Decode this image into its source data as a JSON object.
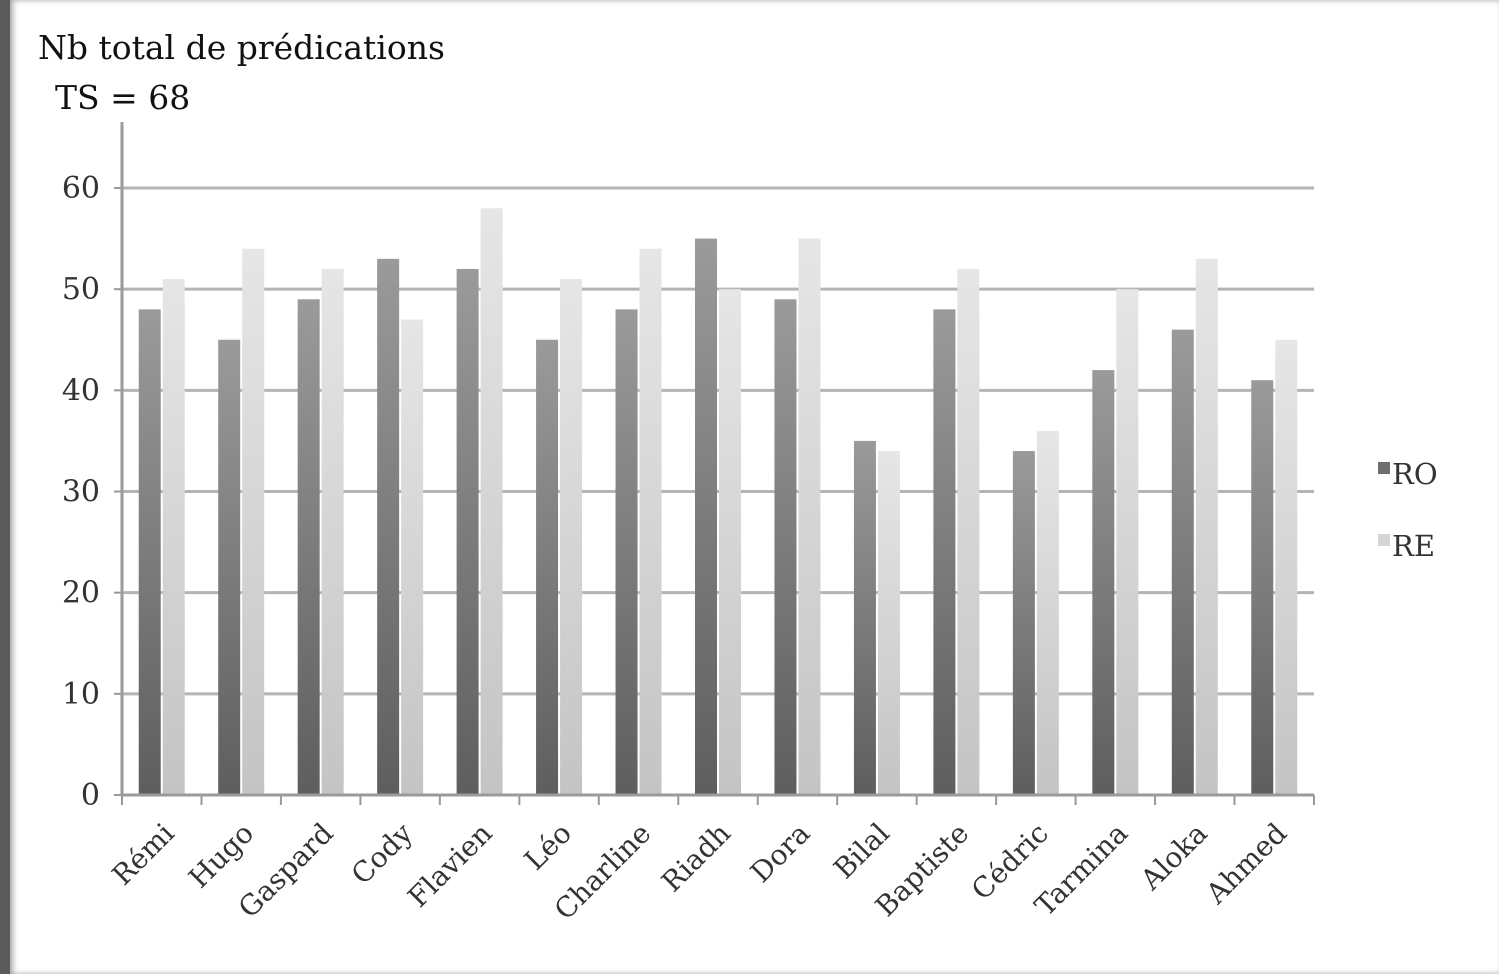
{
  "chart_data": {
    "type": "bar",
    "title": "Nb total de prédications",
    "subtitle": "TS = 68",
    "categories": [
      "Rémi",
      "Hugo",
      "Gaspard",
      "Cody",
      "Flavien",
      "Léo",
      "Charline",
      "Riadh",
      "Dora",
      "Bilal",
      "Baptiste",
      "Cédric",
      "Tarmina",
      "Aloka",
      "Ahmed"
    ],
    "series": [
      {
        "name": "RO",
        "values": [
          48,
          45,
          49,
          53,
          52,
          45,
          48,
          55,
          49,
          35,
          48,
          34,
          42,
          46,
          41
        ]
      },
      {
        "name": "RE",
        "values": [
          51,
          54,
          52,
          47,
          58,
          51,
          54,
          50,
          55,
          34,
          52,
          36,
          50,
          53,
          45
        ]
      }
    ],
    "ylim": [
      0,
      60
    ],
    "yticks": [
      0,
      10,
      20,
      30,
      40,
      50,
      60
    ],
    "grid": true,
    "legend_position": "right",
    "colors": {
      "RO": "#6e6e6e",
      "RE": "#d6d6d6",
      "grid": "#b4b4b4"
    }
  }
}
